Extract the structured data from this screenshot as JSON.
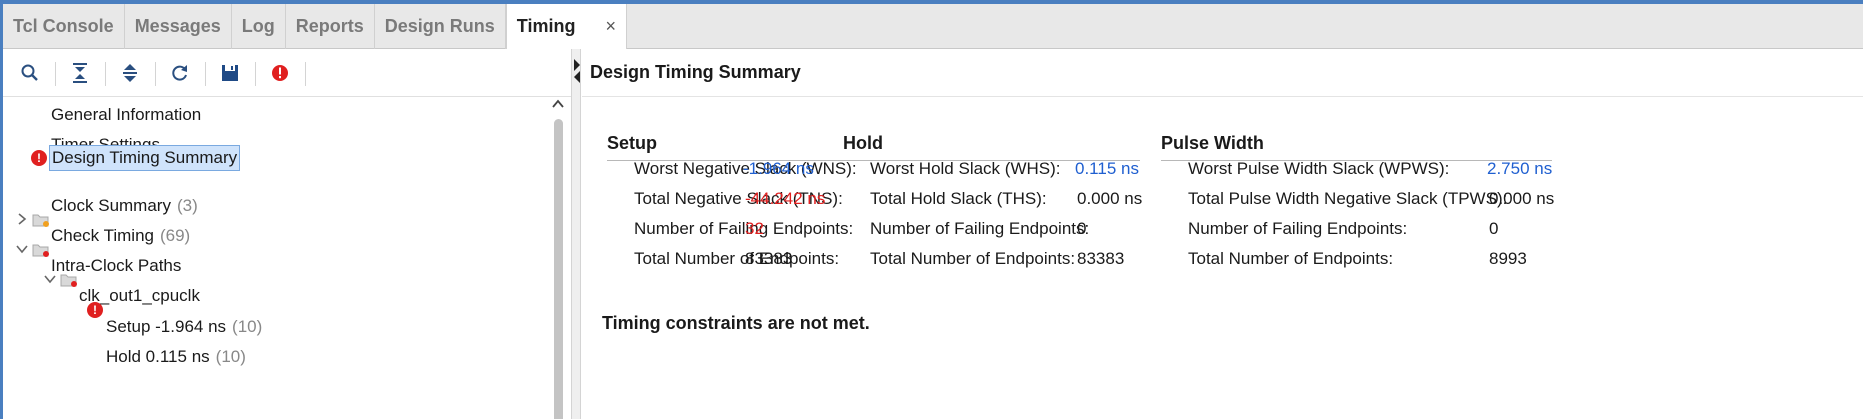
{
  "tabs": [
    {
      "label": "Tcl Console"
    },
    {
      "label": "Messages"
    },
    {
      "label": "Log"
    },
    {
      "label": "Reports"
    },
    {
      "label": "Design Runs"
    },
    {
      "label": "Timing",
      "close": "×"
    }
  ],
  "toolbar": {
    "icons": [
      "search-icon",
      "collapse-all-icon",
      "expand-all-icon",
      "refresh-icon",
      "save-icon",
      "error-filter-icon"
    ]
  },
  "tree": {
    "general_information": "General Information",
    "timer_settings": "Timer Settings",
    "design_timing_summary": "Design Timing Summary",
    "clock_summary": "Clock Summary",
    "clock_summary_count": "(3)",
    "check_timing": "Check Timing",
    "check_timing_count": "(69)",
    "intra_clock_paths": "Intra-Clock Paths",
    "clk_out1": "clk_out1_cpuclk",
    "setup": "Setup -1.964 ns",
    "setup_count": "(10)",
    "hold": "Hold 0.115 ns",
    "hold_count": "(10)"
  },
  "panel": {
    "title": "Design Timing Summary",
    "status": "Timing constraints are not met."
  },
  "setup": {
    "title": "Setup",
    "wns_label": "Worst Negative Slack (WNS):",
    "wns_value": "-1.964 ns",
    "tns_label": "Total Negative Slack (TNS):",
    "tns_value": "-44.242 ns",
    "failing_label": "Number of Failing Endpoints:",
    "failing_value": "32",
    "total_label": "Total Number of Endpoints:",
    "total_value": "83383"
  },
  "hold": {
    "title": "Hold",
    "whs_label": "Worst Hold Slack (WHS):",
    "whs_value": "0.115 ns",
    "ths_label": "Total Hold Slack (THS):",
    "ths_value": "0.000 ns",
    "failing_label": "Number of Failing Endpoints:",
    "failing_value": "0",
    "total_label": "Total Number of Endpoints:",
    "total_value": "83383"
  },
  "pulse": {
    "title": "Pulse Width",
    "wpws_label": "Worst Pulse Width Slack (WPWS):",
    "wpws_value": "2.750 ns",
    "tpws_label": "Total Pulse Width Negative Slack (TPWS):",
    "tpws_value": "0.000 ns",
    "failing_label": "Number of Failing Endpoints:",
    "failing_value": "0",
    "total_label": "Total Number of Endpoints:",
    "total_value": "8993"
  },
  "colors": {
    "accent_blue": "#1f5fd0",
    "error_red": "#e02020",
    "selection": "#cfe3fb",
    "frame": "#4a7fc0"
  }
}
